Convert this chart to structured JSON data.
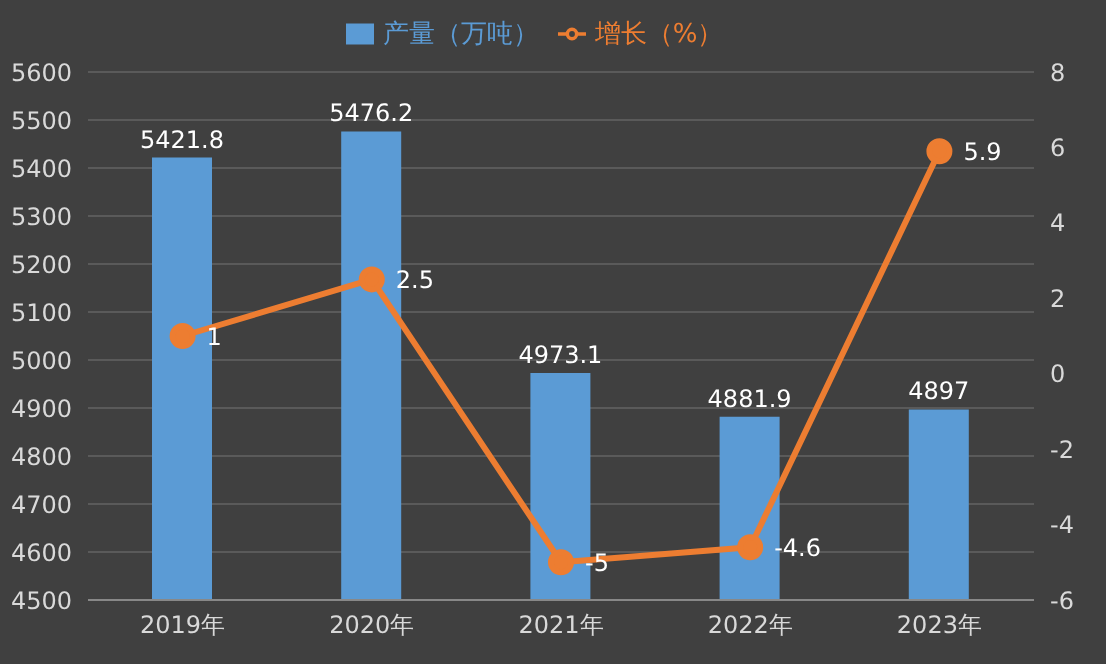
{
  "chart_data": {
    "type": "bar",
    "categories": [
      "2019年",
      "2020年",
      "2021年",
      "2022年",
      "2023年"
    ],
    "series": [
      {
        "name": "产量（万吨）",
        "color": "#5b9bd5",
        "values": [
          5421.8,
          5476.2,
          4973.1,
          4881.9,
          4897
        ]
      },
      {
        "name": "增长（%）",
        "type": "line",
        "axis": "y2",
        "color": "#ed7d31",
        "values": [
          1,
          2.5,
          -5,
          -4.6,
          5.9
        ]
      }
    ],
    "ylim": [
      4500,
      5600
    ],
    "yticks": [
      4500,
      4600,
      4700,
      4800,
      4900,
      5000,
      5100,
      5200,
      5300,
      5400,
      5500,
      5600
    ],
    "y2lim": [
      -6,
      8
    ],
    "y2ticks": [
      -6,
      -4,
      -2,
      0,
      2,
      4,
      6,
      8
    ],
    "grid": "y",
    "legend": "top",
    "marker": "circle",
    "data_labels": true
  }
}
